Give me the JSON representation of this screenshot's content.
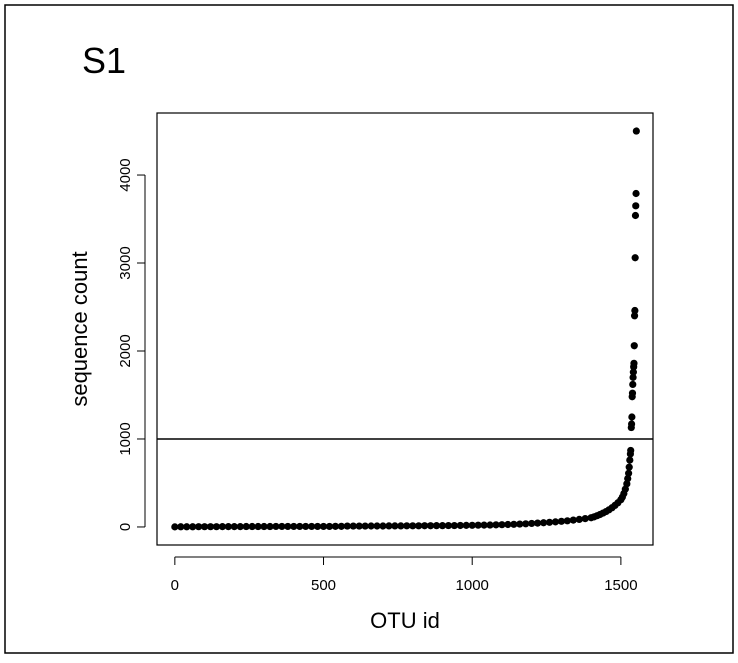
{
  "chart_data": {
    "type": "scatter",
    "title": "S1",
    "xlabel": "OTU id",
    "ylabel": "sequence count",
    "color": "#000000",
    "grid": false,
    "hline": 1000,
    "xlim": [
      -60,
      1608
    ],
    "ylim": [
      -205,
      4705
    ],
    "xticks": [
      0,
      500,
      1000,
      1500
    ],
    "yticks": [
      0,
      1000,
      2000,
      3000,
      4000
    ],
    "x": [
      0,
      20,
      40,
      60,
      80,
      100,
      120,
      140,
      160,
      180,
      200,
      220,
      240,
      260,
      280,
      300,
      320,
      340,
      360,
      380,
      400,
      420,
      440,
      460,
      480,
      500,
      520,
      540,
      560,
      580,
      600,
      620,
      640,
      660,
      680,
      700,
      720,
      740,
      760,
      780,
      800,
      820,
      840,
      860,
      880,
      900,
      920,
      940,
      960,
      980,
      1000,
      1020,
      1040,
      1060,
      1080,
      1100,
      1120,
      1140,
      1160,
      1180,
      1200,
      1220,
      1240,
      1260,
      1280,
      1300,
      1320,
      1340,
      1360,
      1380,
      1400,
      1410,
      1420,
      1430,
      1440,
      1450,
      1460,
      1470,
      1480,
      1490,
      1500,
      1505,
      1510,
      1515,
      1520,
      1523,
      1526,
      1528,
      1530,
      1532,
      1533,
      1535,
      1536,
      1537,
      1538,
      1539,
      1540,
      1541,
      1542,
      1543,
      1544,
      1545,
      1546,
      1547,
      1548,
      1549,
      1550,
      1551,
      1552
    ],
    "values": [
      1,
      2,
      2,
      2,
      3,
      3,
      3,
      3,
      4,
      4,
      4,
      4,
      5,
      5,
      5,
      5,
      5,
      6,
      6,
      6,
      6,
      6,
      6,
      6,
      6,
      6,
      6,
      7,
      7,
      10,
      10,
      10,
      10,
      11,
      11,
      11,
      12,
      12,
      12,
      13,
      13,
      13,
      14,
      14,
      15,
      15,
      16,
      16,
      17,
      18,
      19,
      20,
      21,
      22,
      24,
      26,
      28,
      30,
      33,
      36,
      40,
      44,
      48,
      53,
      58,
      64,
      70,
      78,
      86,
      95,
      105,
      115,
      128,
      142,
      158,
      175,
      195,
      218,
      245,
      275,
      310,
      340,
      380,
      430,
      490,
      550,
      610,
      680,
      760,
      830,
      870,
      1130,
      1170,
      1250,
      1480,
      1520,
      1620,
      1700,
      1760,
      1820,
      1860,
      2060,
      2400,
      2460,
      3060,
      3540,
      3650,
      3790,
      4500
    ]
  }
}
